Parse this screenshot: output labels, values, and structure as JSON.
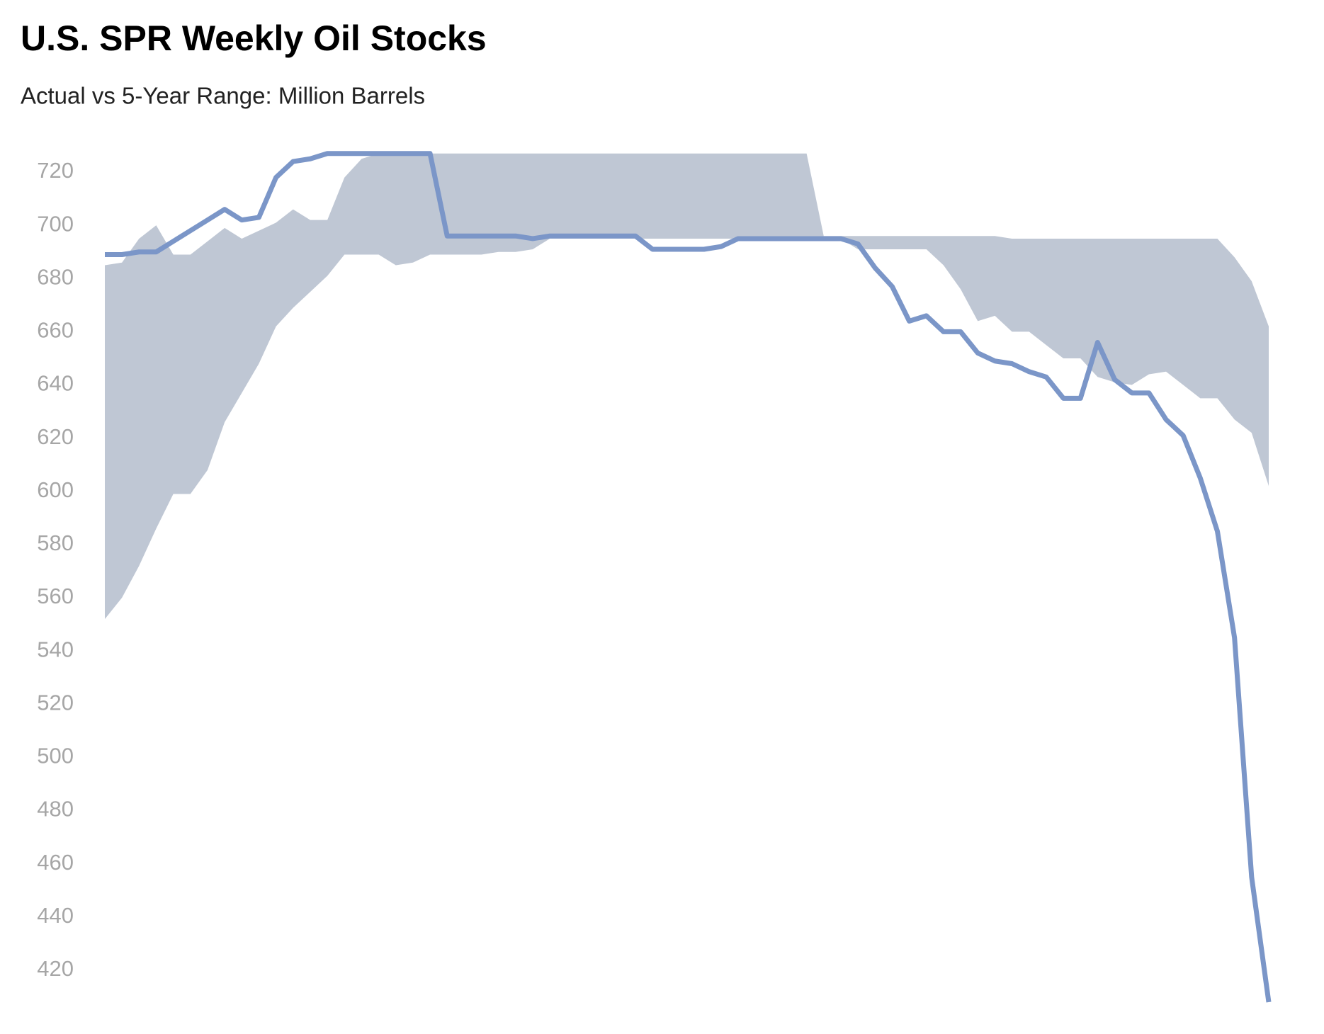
{
  "chart_data": {
    "type": "line",
    "title": "U.S. SPR Weekly Oil Stocks",
    "subtitle": "Actual vs 5-Year Range: Million Barrels",
    "ylim": [
      408,
      728
    ],
    "yticks": [
      420,
      440,
      460,
      480,
      500,
      520,
      540,
      560,
      580,
      600,
      620,
      640,
      660,
      680,
      700,
      720
    ],
    "range": {
      "color": "#bfc7d4",
      "high": [
        685,
        686,
        695,
        700,
        689,
        689,
        694,
        699,
        695,
        698,
        701,
        706,
        702,
        702,
        718,
        725,
        727,
        727,
        727,
        727,
        727,
        727,
        727,
        727,
        727,
        727,
        727,
        727,
        727,
        727,
        727,
        727,
        727,
        727,
        727,
        727,
        727,
        727,
        727,
        727,
        727,
        727,
        696,
        696,
        696,
        696,
        696,
        696,
        696,
        696,
        696,
        696,
        696,
        695,
        695,
        695,
        695,
        695,
        695,
        695,
        695,
        695,
        695,
        695,
        695,
        695,
        688,
        679,
        662
      ],
      "low": [
        552,
        560,
        572,
        586,
        599,
        599,
        608,
        626,
        637,
        648,
        662,
        669,
        675,
        681,
        689,
        689,
        689,
        685,
        686,
        689,
        689,
        689,
        689,
        690,
        690,
        691,
        695,
        695,
        695,
        695,
        695,
        695,
        695,
        695,
        695,
        695,
        695,
        695,
        695,
        695,
        695,
        695,
        695,
        695,
        691,
        691,
        691,
        691,
        691,
        685,
        676,
        664,
        666,
        660,
        660,
        655,
        650,
        650,
        643,
        641,
        640,
        644,
        645,
        640,
        635,
        635,
        627,
        622,
        602
      ]
    },
    "series": [
      {
        "color": "#7b96c8",
        "values": [
          689,
          689,
          690,
          690,
          694,
          698,
          702,
          706,
          702,
          703,
          718,
          724,
          725,
          727,
          727,
          727,
          727,
          727,
          727,
          727,
          696,
          696,
          696,
          696,
          696,
          695,
          696,
          696,
          696,
          696,
          696,
          696,
          691,
          691,
          691,
          691,
          692,
          695,
          695,
          695,
          695,
          695,
          695,
          695,
          693,
          684,
          677,
          664,
          666,
          660,
          660,
          652,
          649,
          648,
          645,
          643,
          635,
          635,
          656,
          642,
          637,
          637,
          627,
          621,
          605,
          585,
          545,
          455,
          408
        ]
      }
    ]
  }
}
